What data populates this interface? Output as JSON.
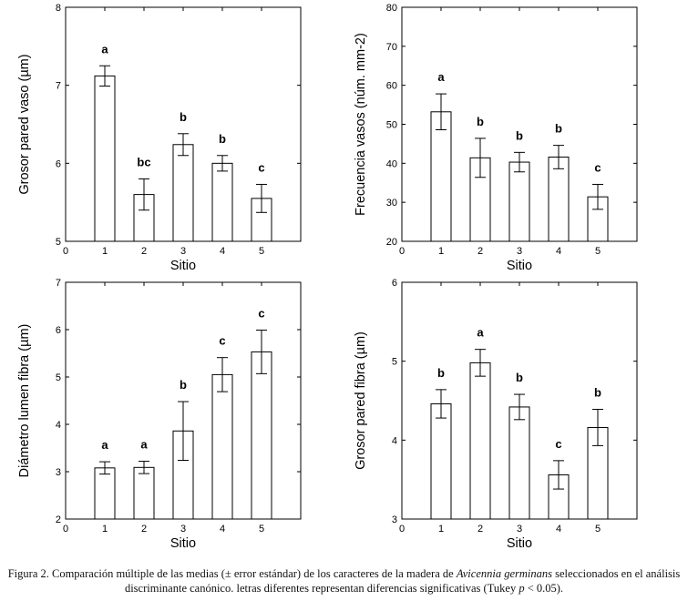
{
  "chart_data": [
    {
      "type": "bar",
      "xlabel": "Sitio",
      "ylabel": "Grosor pared vaso (µm)",
      "xlim": [
        0,
        6
      ],
      "xticks": [
        "0",
        "1",
        "2",
        "3",
        "4",
        "5"
      ],
      "ylim": [
        5,
        8
      ],
      "yticks": [
        "5",
        "6",
        "7",
        "8"
      ],
      "categories": [
        "1",
        "2",
        "3",
        "4",
        "5"
      ],
      "values": [
        7.12,
        5.6,
        6.24,
        6.0,
        5.55
      ],
      "errors": [
        0.13,
        0.2,
        0.14,
        0.1,
        0.18
      ],
      "labels": [
        "a",
        "bc",
        "b",
        "b",
        "c"
      ]
    },
    {
      "type": "bar",
      "xlabel": "Sitio",
      "ylabel": "Frecuencia vasos (núm. mm-2)",
      "xlim": [
        0,
        6
      ],
      "xticks": [
        "0",
        "1",
        "2",
        "3",
        "4",
        "5"
      ],
      "ylim": [
        20,
        80
      ],
      "yticks": [
        "20",
        "30",
        "40",
        "50",
        "60",
        "70",
        "80"
      ],
      "categories": [
        "1",
        "2",
        "3",
        "4",
        "5"
      ],
      "values": [
        53.2,
        41.4,
        40.3,
        41.6,
        31.4
      ],
      "errors": [
        4.6,
        5.0,
        2.5,
        3.0,
        3.2
      ],
      "labels": [
        "a",
        "b",
        "b",
        "b",
        "c"
      ]
    },
    {
      "type": "bar",
      "xlabel": "Sitio",
      "ylabel": "Diámetro lumen fibra (µm)",
      "xlim": [
        0,
        6
      ],
      "xticks": [
        "0",
        "1",
        "2",
        "3",
        "4",
        "5"
      ],
      "ylim": [
        2,
        7
      ],
      "yticks": [
        "2",
        "3",
        "4",
        "5",
        "6",
        "7"
      ],
      "categories": [
        "1",
        "2",
        "3",
        "4",
        "5"
      ],
      "values": [
        3.08,
        3.09,
        3.86,
        5.05,
        5.53
      ],
      "errors": [
        0.13,
        0.13,
        0.62,
        0.36,
        0.46
      ],
      "labels": [
        "a",
        "a",
        "b",
        "c",
        "c"
      ]
    },
    {
      "type": "bar",
      "xlabel": "Sitio",
      "ylabel": "Grosor pared fibra (µm)",
      "xlim": [
        0,
        6
      ],
      "xticks": [
        "0",
        "1",
        "2",
        "3",
        "4",
        "5"
      ],
      "ylim": [
        3,
        6
      ],
      "yticks": [
        "3",
        "4",
        "5",
        "6"
      ],
      "categories": [
        "1",
        "2",
        "3",
        "4",
        "5"
      ],
      "values": [
        4.46,
        4.98,
        4.42,
        3.56,
        4.16
      ],
      "errors": [
        0.18,
        0.17,
        0.16,
        0.18,
        0.23
      ],
      "labels": [
        "b",
        "a",
        "b",
        "c",
        "b"
      ]
    }
  ],
  "caption": {
    "part1": "Figura 2. Comparación múltiple de las medias (± error estándar) de los caracteres de la madera de ",
    "species": "Avicennia germinans",
    "part2": " seleccionados en el análisis discriminante canónico. letras diferentes representan diferencias significativas (Tukey ",
    "p_symbol": "p",
    "part3": " < 0.05)."
  }
}
